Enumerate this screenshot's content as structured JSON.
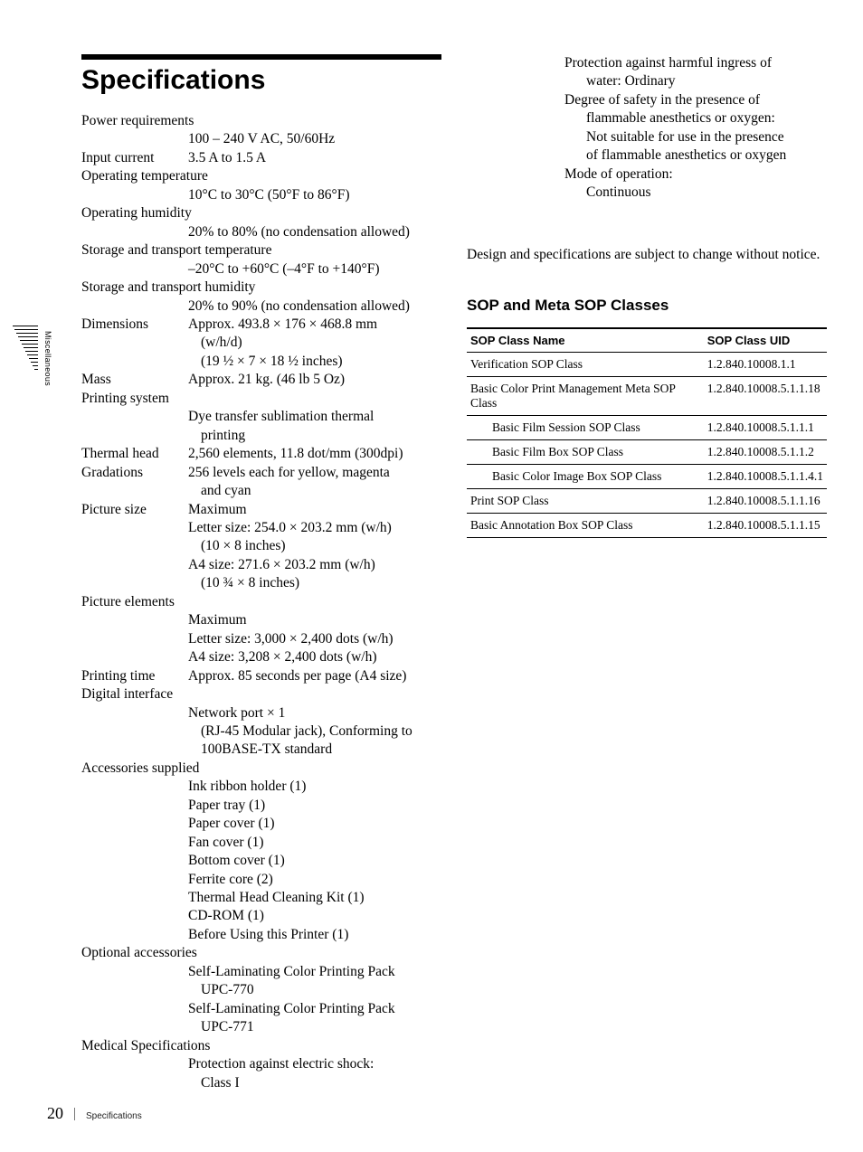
{
  "tab_label": "Miscellaneous",
  "heading": "Specifications",
  "specs": [
    {
      "label": "Power requirements",
      "full": true
    },
    {
      "val": "100 – 240 V AC, 50/60Hz"
    },
    {
      "label": "Input current",
      "val": "3.5 A to 1.5 A"
    },
    {
      "label": "Operating temperature",
      "full": true
    },
    {
      "val": "10°C to 30°C (50°F to 86°F)"
    },
    {
      "label": "Operating humidity",
      "full": true
    },
    {
      "val": "20% to 80% (no condensation allowed)"
    },
    {
      "label": "Storage and transport temperature",
      "full": true
    },
    {
      "val": "–20°C to +60°C (–4°F to +140°F)"
    },
    {
      "label": "Storage and transport humidity",
      "full": true
    },
    {
      "val": "20% to 90% (no condensation allowed)"
    },
    {
      "label": "Dimensions",
      "val": "Approx. 493.8 × 176 × 468.8 mm",
      "indent_lines": [
        "(w/h/d)",
        "(19 ½ × 7 × 18 ½ inches)"
      ],
      "indent_first": true
    },
    {
      "label": "Mass",
      "val": "Approx. 21 kg. (46 lb 5 Oz)"
    },
    {
      "label": "Printing system",
      "full": true
    },
    {
      "val": "Dye transfer sublimation thermal",
      "indent_lines": [
        "printing"
      ],
      "indent_first": true
    },
    {
      "label": "Thermal head",
      "val": "2,560 elements, 11.8 dot/mm (300dpi)"
    },
    {
      "label": "Gradations",
      "val": "256 levels each for yellow, magenta",
      "indent_lines": [
        "and cyan"
      ],
      "indent_first": true
    },
    {
      "label": "Picture size",
      "val": "Maximum",
      "extra_lines": [
        "Letter size: 254.0 × 203.2 mm (w/h)"
      ],
      "indent_lines": [
        "(10 × 8 inches)"
      ],
      "after_lines": [
        "A4 size: 271.6 × 203.2 mm (w/h)"
      ],
      "after_indent": [
        "(10 ¾ × 8 inches)"
      ]
    },
    {
      "label": "Picture elements",
      "full": true
    },
    {
      "val": "Maximum",
      "extra_lines": [
        "Letter size: 3,000 × 2,400 dots (w/h)",
        "A4 size: 3,208 × 2,400 dots (w/h)"
      ]
    },
    {
      "label": "Printing time",
      "val": "Approx. 85 seconds per page (A4 size)"
    },
    {
      "label": "Digital interface",
      "full": true
    },
    {
      "val": "Network port × 1",
      "indent_lines": [
        "(RJ-45 Modular jack), Conforming to 100BASE-TX standard"
      ],
      "indent_first": true
    },
    {
      "label": "Accessories supplied",
      "full": true
    },
    {
      "val": "Ink ribbon holder (1)",
      "extra_lines": [
        "Paper tray (1)",
        "Paper cover (1)",
        "Fan cover (1)",
        "Bottom cover (1)",
        "Ferrite core (2)",
        "Thermal Head Cleaning Kit (1)",
        "CD-ROM (1)",
        "Before Using this Printer (1)"
      ]
    },
    {
      "label": "Optional accessories",
      "full": true
    },
    {
      "val": "Self-Laminating Color Printing Pack",
      "indent_lines": [
        "UPC-770"
      ],
      "indent_first": true,
      "after_lines": [
        "Self-Laminating Color Printing Pack"
      ],
      "after_indent": [
        "UPC-771"
      ]
    },
    {
      "label": "Medical Specifications",
      "full": true
    },
    {
      "val": "Protection against electric shock:",
      "indent_lines": [
        "Class I"
      ],
      "indent_first": true
    }
  ],
  "right_top": {
    "lines": [
      {
        "l": 1,
        "t": "Protection against harmful ingress of"
      },
      {
        "l": 2,
        "t": "water: Ordinary"
      },
      {
        "l": 1,
        "t": "Degree of safety in the presence of"
      },
      {
        "l": 2,
        "t": "flammable anesthetics or oxygen:"
      },
      {
        "l": 2,
        "t": "Not suitable for use in the presence"
      },
      {
        "l": 2,
        "t": "of flammable anesthetics or oxygen"
      },
      {
        "l": 1,
        "t": "Mode of operation:"
      },
      {
        "l": 2,
        "t": "Continuous"
      }
    ]
  },
  "note": "Design and specifications are subject to change without notice.",
  "sop_heading": "SOP and Meta SOP Classes",
  "sop_table": {
    "headers": [
      "SOP Class Name",
      "SOP Class UID"
    ],
    "rows": [
      {
        "name": "Verification SOP Class",
        "uid": "1.2.840.10008.1.1",
        "sub": false
      },
      {
        "name": "Basic Color Print Management Meta SOP Class",
        "uid": "1.2.840.10008.5.1.1.18",
        "sub": false
      },
      {
        "name": "Basic Film Session SOP Class",
        "uid": "1.2.840.10008.5.1.1.1",
        "sub": true
      },
      {
        "name": "Basic Film Box SOP Class",
        "uid": "1.2.840.10008.5.1.1.2",
        "sub": true
      },
      {
        "name": "Basic Color Image Box SOP Class",
        "uid": "1.2.840.10008.5.1.1.4.1",
        "sub": true
      },
      {
        "name": "Print SOP Class",
        "uid": "1.2.840.10008.5.1.1.16",
        "sub": false
      },
      {
        "name": "Basic Annotation Box SOP Class",
        "uid": "1.2.840.10008.5.1.1.15",
        "sub": false
      }
    ]
  },
  "footer": {
    "page": "20",
    "section": "Specifications"
  }
}
